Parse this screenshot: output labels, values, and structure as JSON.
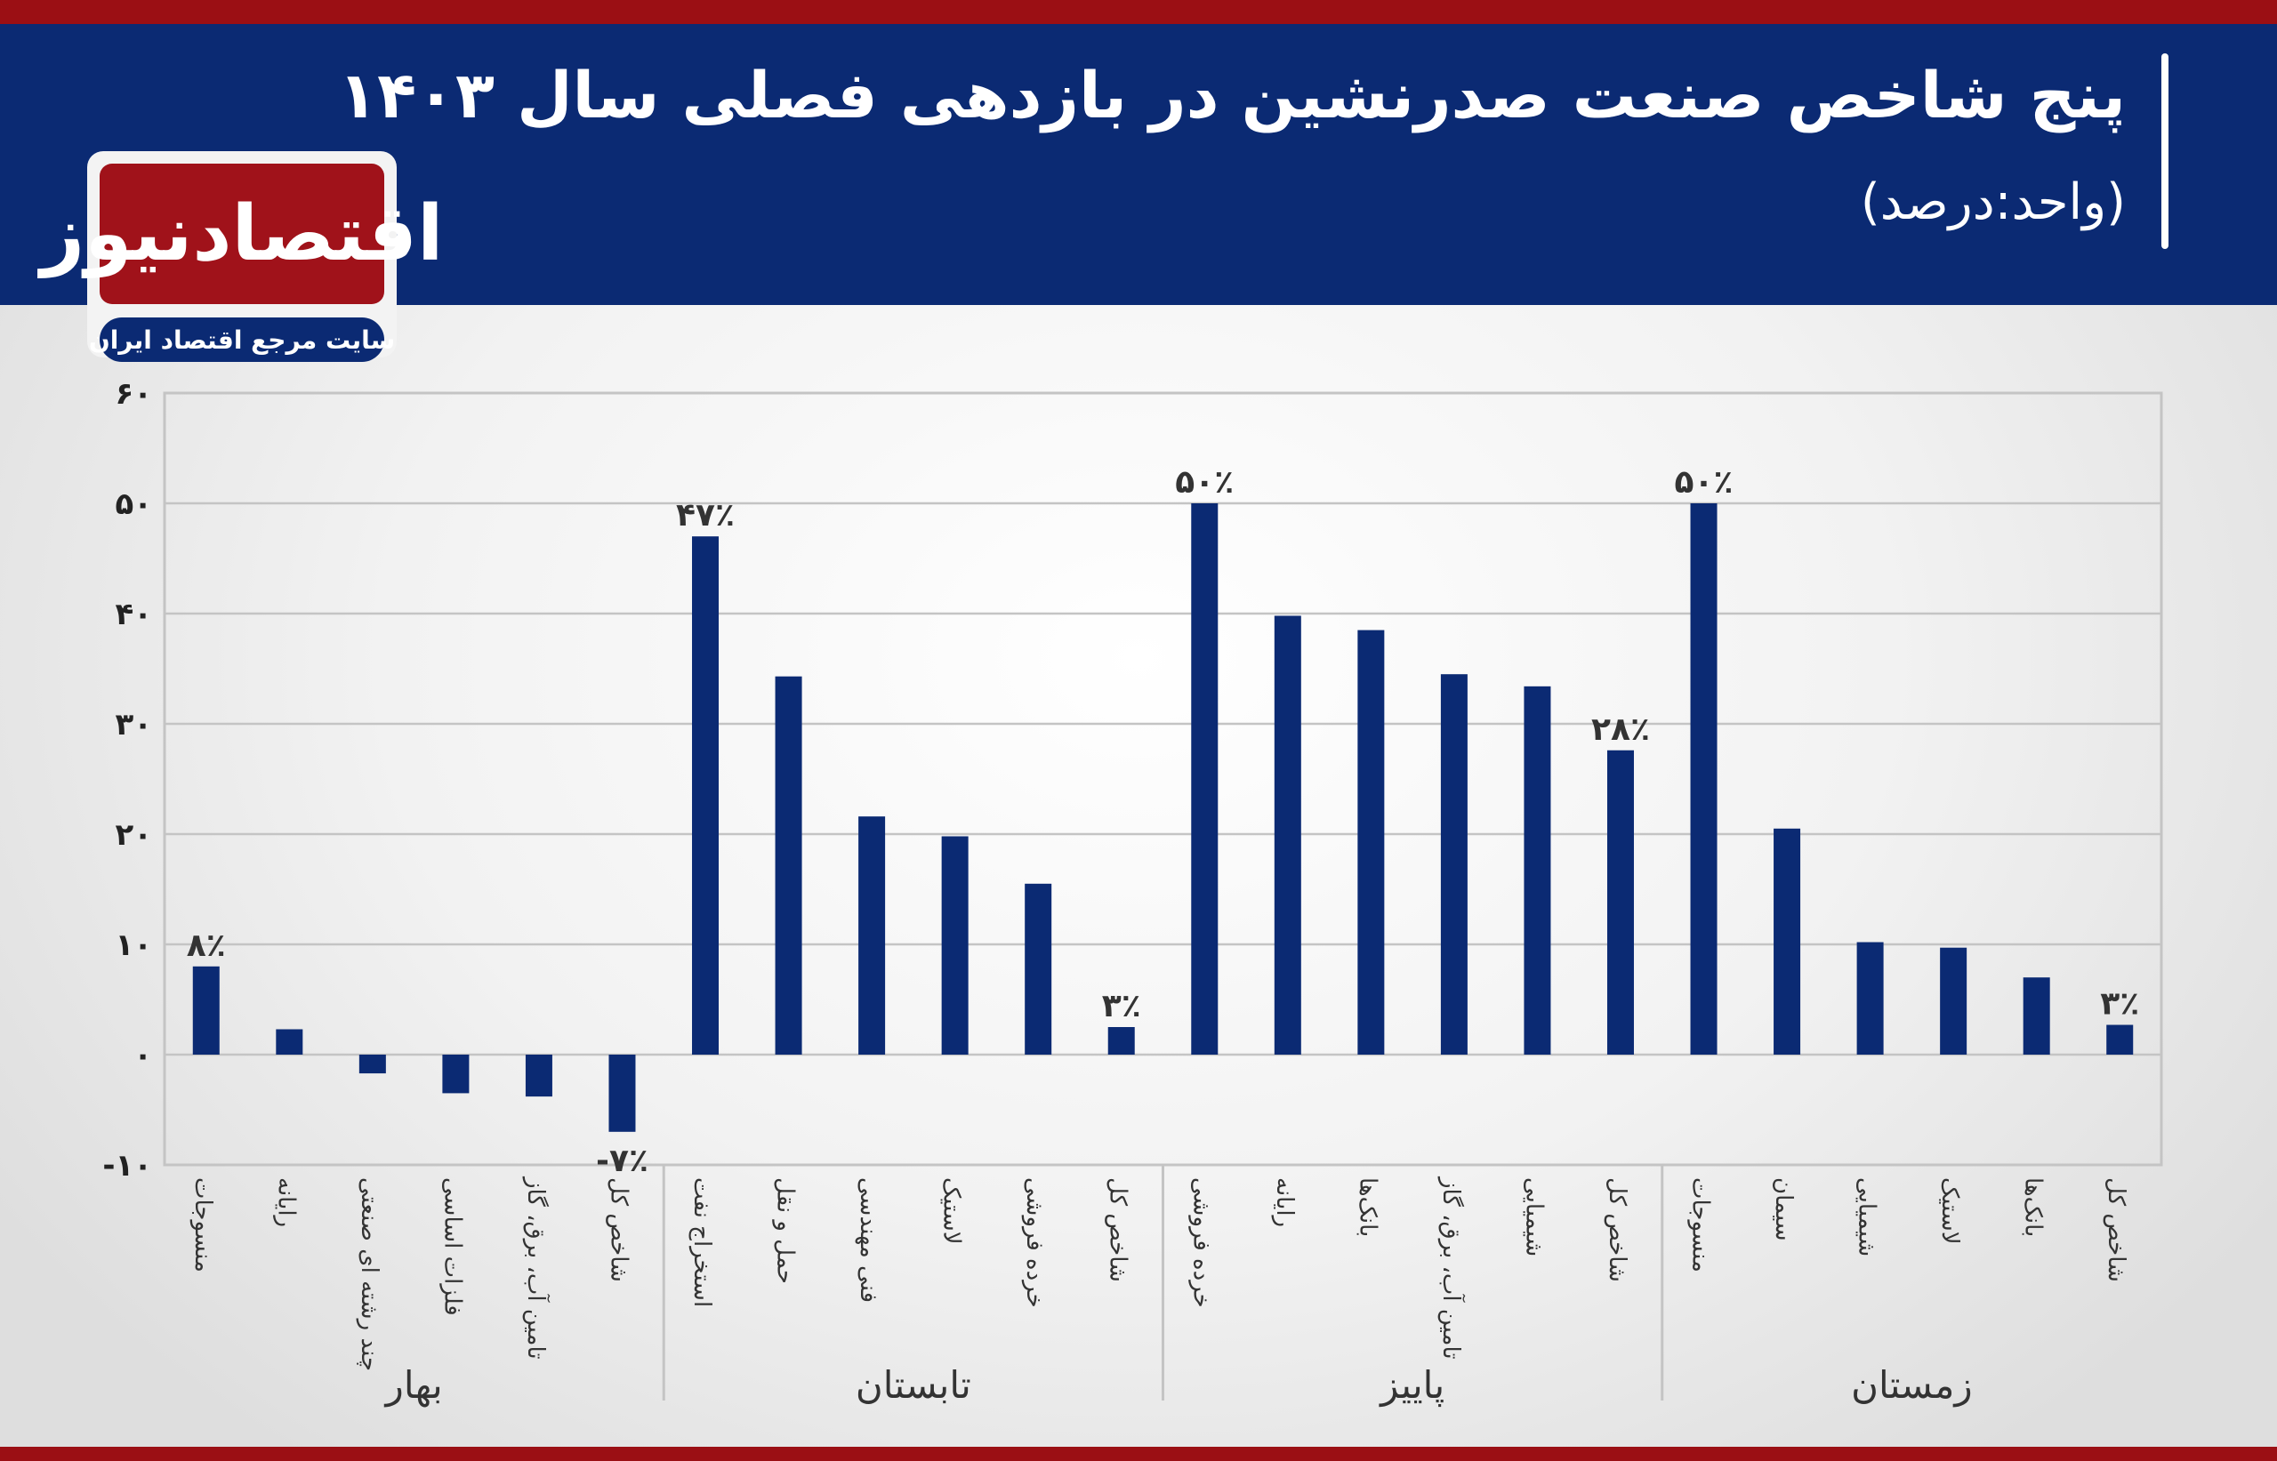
{
  "header": {
    "title": "پنج شاخص صنعت صدرنشین در بازدهی فصلی سال ۱۴۰۳",
    "subtitle": "(واحد:درصد)"
  },
  "logo": {
    "name": "اقتصادنیوز",
    "tagline": "سایت مرجع اقتصاد ایران"
  },
  "colors": {
    "bar": "#0b2a73",
    "header": "#0b2a73",
    "accent": "#9b0f14",
    "grid": "#c4c4c4"
  },
  "chart_data": {
    "type": "bar",
    "ylim": [
      -10,
      60
    ],
    "yticks": [
      -10,
      0,
      10,
      20,
      30,
      40,
      50,
      60
    ],
    "ytick_labels": [
      "-۱۰",
      "۰",
      "۱۰",
      "۲۰",
      "۳۰",
      "۴۰",
      "۵۰",
      "۶۰"
    ],
    "grid": true,
    "legend": "none",
    "groups": [
      {
        "name": "بهار",
        "categories": [
          "منسوجات",
          "رایانه",
          "چند رشته ای صنعتی",
          "فلزات اساسی",
          "تامین آب، برق، گاز",
          "شاخص کل"
        ],
        "values": [
          8,
          2.3,
          -1.7,
          -3.5,
          -3.8,
          -7
        ],
        "value_labels": [
          "۸٪",
          "",
          "",
          "",
          "",
          "-۷٪"
        ]
      },
      {
        "name": "تابستان",
        "categories": [
          "استخراج نفت",
          "حمل و نقل",
          "فنی مهندسی",
          "لاستیک",
          "خرده فروشی",
          "شاخص کل"
        ],
        "values": [
          47,
          34.3,
          21.6,
          19.8,
          15.5,
          2.5
        ],
        "value_labels": [
          "۴۷٪",
          "",
          "",
          "",
          "",
          "۳٪"
        ]
      },
      {
        "name": "پاییز",
        "categories": [
          "خرده فروشی",
          "رایانه",
          "بانک‌ها",
          "تامین آب، برق، گاز",
          "شیمیایی",
          "شاخص کل"
        ],
        "values": [
          50,
          39.8,
          38.5,
          34.5,
          33.4,
          27.6
        ],
        "value_labels": [
          "۵۰٪",
          "",
          "",
          "",
          "",
          "۲۸٪"
        ]
      },
      {
        "name": "زمستان",
        "categories": [
          "منسوجات",
          "سیمان",
          "شیمیایی",
          "لاستیک",
          "بانک‌ها",
          "شاخص کل"
        ],
        "values": [
          50,
          20.5,
          10.2,
          9.7,
          7,
          2.7
        ],
        "value_labels": [
          "۵۰٪",
          "",
          "",
          "",
          "",
          "۳٪"
        ]
      }
    ]
  }
}
